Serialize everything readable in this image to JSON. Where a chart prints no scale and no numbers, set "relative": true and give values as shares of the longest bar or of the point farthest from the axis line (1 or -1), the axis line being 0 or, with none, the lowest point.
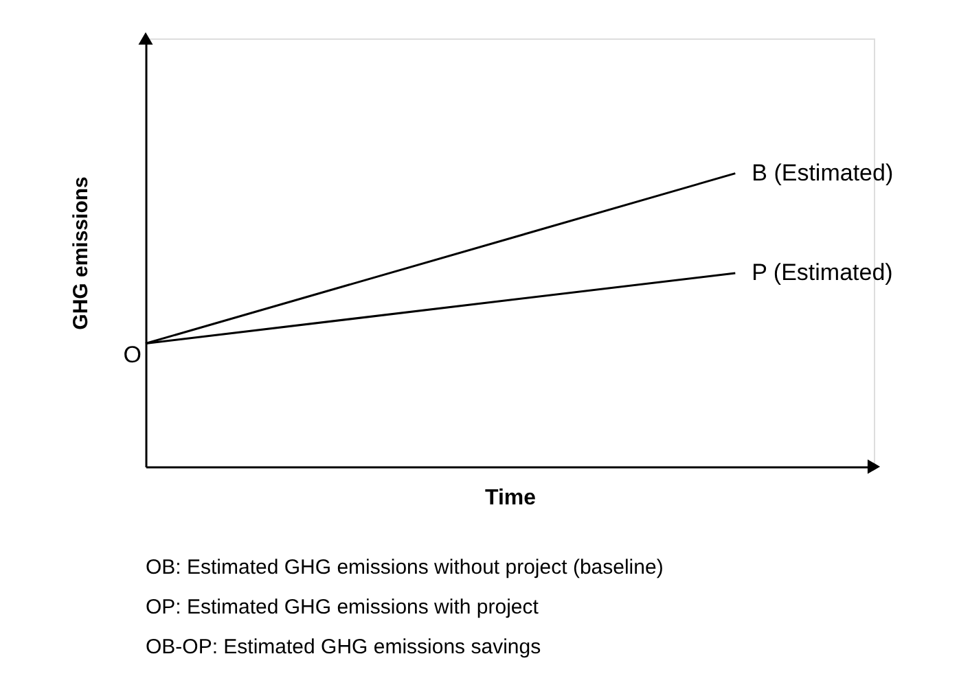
{
  "chart_data": {
    "type": "line",
    "relative": true,
    "xlabel": "Time",
    "ylabel": "GHG emissions",
    "categories": [
      null,
      null
    ],
    "tick_labels": false,
    "legend": false,
    "grid": false,
    "series": [
      {
        "name": "B (Estimated)",
        "color": "#000000",
        "values": [
          0.42,
          1
        ]
      },
      {
        "name": "P (Estimated)",
        "color": "#000000",
        "values": [
          0.42,
          0.66
        ]
      }
    ],
    "annotations": [
      "O",
      "OB: Estimated GHG emissions without project (baseline)",
      "OP: Estimated GHG emissions with project",
      "OB-OP: Estimated GHG emissions savings"
    ]
  }
}
